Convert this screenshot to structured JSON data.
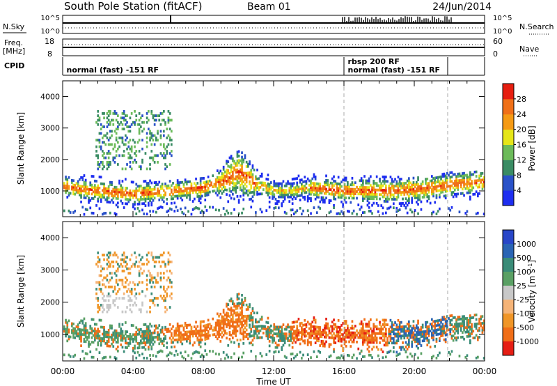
{
  "header": {
    "station": "South Pole Station (fitACF)",
    "beam": "Beam 01",
    "date": "24/Jun/2014"
  },
  "strips": {
    "nsky_label": "N.Sky",
    "nsearch_label": "N.Search",
    "nsky_ticks": [
      "10^5",
      "10^0"
    ],
    "nsearch_ticks": [
      "10^5",
      "10^0"
    ],
    "freq_label_1": "Freq.",
    "freq_label_2": "[MHz]",
    "freq_ticks": [
      "18",
      "8"
    ],
    "nave_label": "Nave",
    "nave_ticks": [
      "60",
      "0"
    ],
    "cpid_label": "CPID",
    "cpid_entries": [
      {
        "label": "normal (fast) -151 RF",
        "hour": 0.1
      },
      {
        "label": "rbsp 200 RF",
        "hour": 16.1,
        "row": 0
      },
      {
        "label": "normal (fast) -151 RF",
        "hour": 16.1,
        "row": 1
      }
    ],
    "cpid_switch_hours": [
      16.0,
      21.9
    ]
  },
  "chart_data": [
    {
      "type": "heatmap",
      "name": "power",
      "ylabel": "Slant Range [km]",
      "xlabel": "Time UT",
      "xlim": [
        0,
        24
      ],
      "ylim": [
        180,
        4500
      ],
      "x_ticks": [
        "00:00",
        "04:00",
        "08:00",
        "12:00",
        "16:00",
        "20:00",
        "00:00"
      ],
      "y_ticks": [
        1000,
        2000,
        3000,
        4000
      ],
      "colorbar": {
        "label": "Power [dB]",
        "ticks": [
          4,
          8,
          12,
          16,
          20,
          24,
          28
        ],
        "range": [
          0,
          32
        ],
        "colors": [
          "#1e2ef0",
          "#2a52c8",
          "#3a8c64",
          "#6cbb5a",
          "#e6e619",
          "#f59a14",
          "#f07018",
          "#e61e10"
        ]
      },
      "echo_band": {
        "hours": [
          0,
          1,
          2,
          3,
          4,
          5,
          6,
          7,
          8,
          9,
          10,
          11,
          12,
          13,
          14,
          15,
          16,
          17,
          18,
          19,
          20,
          21,
          22,
          23,
          24
        ],
        "center_km": [
          1150,
          1050,
          1000,
          950,
          900,
          950,
          1000,
          1050,
          1100,
          1300,
          1600,
          1200,
          1000,
          1000,
          1100,
          1050,
          1000,
          1000,
          1000,
          1000,
          1050,
          1100,
          1200,
          1250,
          1300
        ]
      }
    },
    {
      "type": "heatmap",
      "name": "velocity",
      "ylabel": "Slant Range [km]",
      "xlabel": "Time UT",
      "xlim": [
        0,
        24
      ],
      "ylim": [
        180,
        4500
      ],
      "x_ticks": [
        "00:00",
        "04:00",
        "08:00",
        "12:00",
        "16:00",
        "20:00",
        "00:00"
      ],
      "y_ticks": [
        1000,
        2000,
        3000,
        4000
      ],
      "colorbar": {
        "label": "Velocity [m s^-1]",
        "ticks": [
          "1000",
          "500",
          "100",
          "25",
          "-25",
          "-100",
          "-500",
          "-1000"
        ],
        "colors": [
          "#2846c8",
          "#2a64b4",
          "#3a8c78",
          "#5aa064",
          "#c8c8c8",
          "#f5b478",
          "#f09628",
          "#f06e18",
          "#e61e14"
        ]
      }
    }
  ]
}
